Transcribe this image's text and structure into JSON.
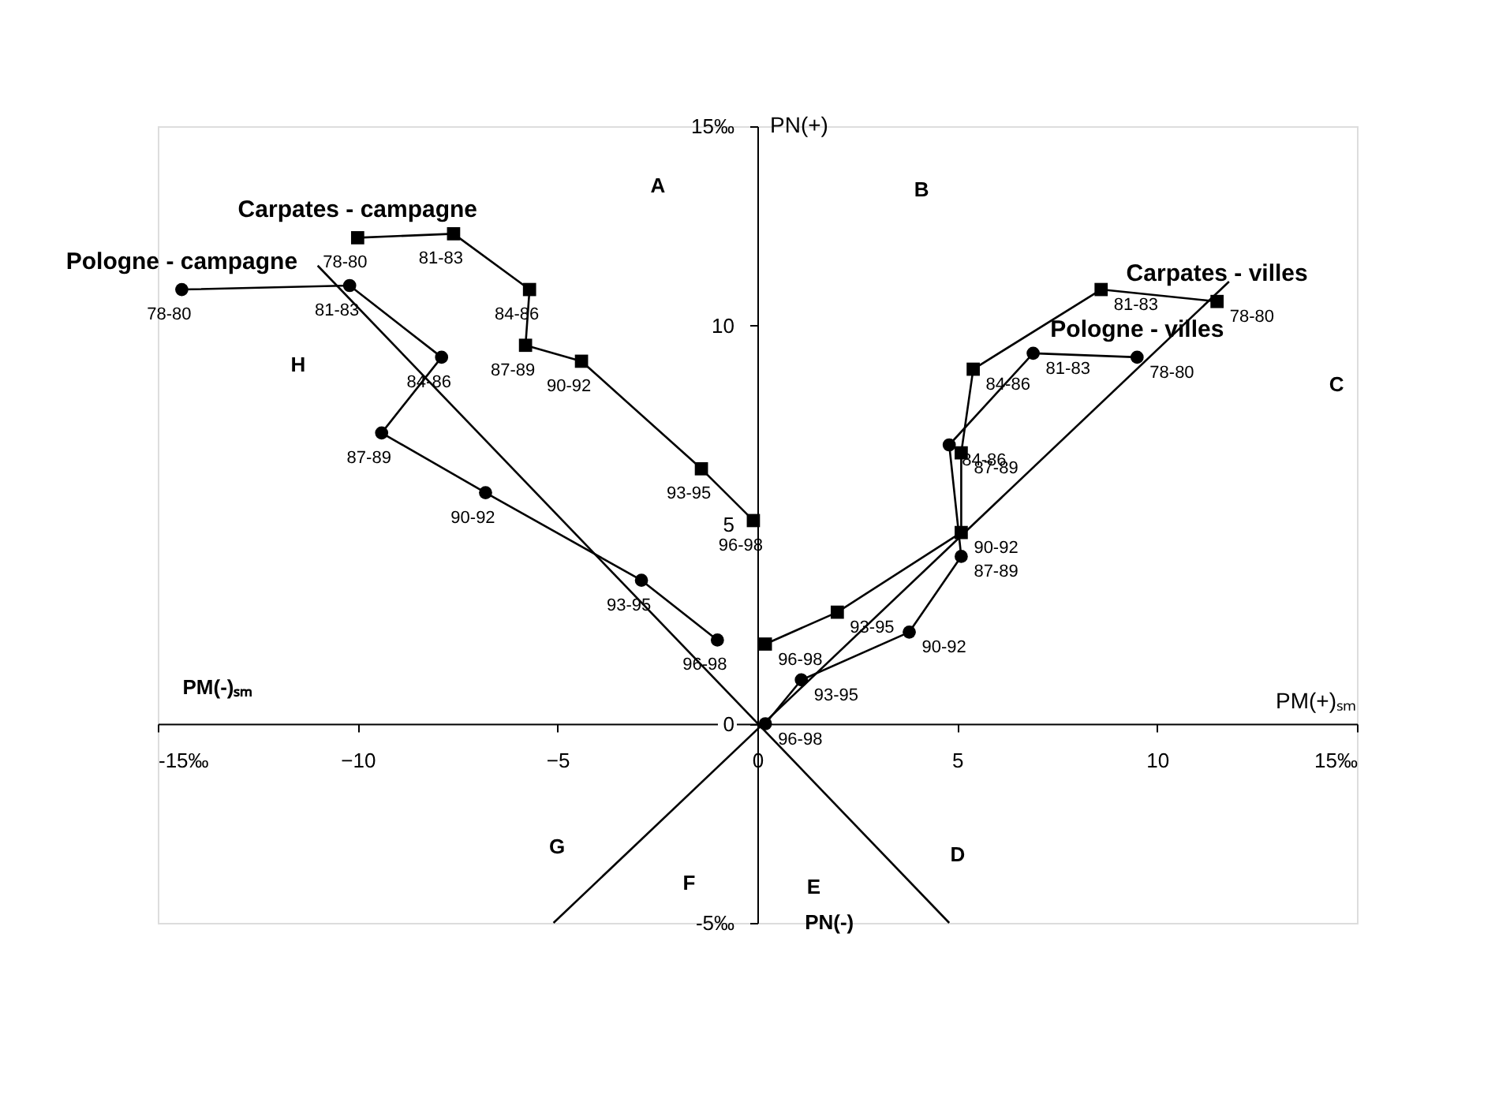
{
  "chart_data": {
    "type": "line",
    "xlabel": "PM(+)ₛₘ",
    "ylabel": "PN(+)",
    "xlim": [
      -15,
      15
    ],
    "ylim": [
      -5,
      15
    ],
    "xticks": [
      {
        "value": -15,
        "label": "-15‰"
      },
      -10,
      -5,
      0,
      5,
      10,
      {
        "value": 15,
        "label": "15‰"
      }
    ],
    "yticks": [
      {
        "value": -5,
        "label": "-5‰"
      },
      0,
      5,
      10,
      {
        "value": 15,
        "label": "15‰"
      }
    ],
    "grid": false,
    "series": [
      {
        "name": "Pologne - campagne",
        "marker": "circle",
        "color": "#000000",
        "x": [
          -14.4,
          -10.2,
          -7.9,
          -9.4,
          -6.8,
          -2.9,
          -1.0
        ],
        "values": [
          10.9,
          11.0,
          9.2,
          7.3,
          5.8,
          3.6,
          2.1
        ]
      },
      {
        "name": "Carpates - campagne",
        "marker": "square",
        "color": "#000000",
        "x": [
          -10.0,
          -7.6,
          -5.7,
          -5.8,
          -4.4,
          -1.4,
          -0.1
        ],
        "values": [
          12.2,
          12.3,
          10.9,
          9.5,
          9.1,
          6.4,
          5.1
        ]
      },
      {
        "name": "Carpates - villes",
        "marker": "square",
        "color": "#000000",
        "x": [
          11.5,
          8.6,
          5.4,
          5.1,
          5.1,
          2.0,
          0.2
        ],
        "values": [
          10.6,
          10.9,
          8.9,
          6.8,
          4.8,
          2.8,
          2.0
        ]
      },
      {
        "name": "Pologne - villes",
        "marker": "circle",
        "color": "#000000",
        "x": [
          9.5,
          6.9,
          4.8,
          5.1,
          3.8,
          1.1,
          0.2
        ],
        "values": [
          9.2,
          9.3,
          7.0,
          4.2,
          2.3,
          1.1,
          0.0
        ]
      },
      {
        "marker": "none",
        "color": "#000000",
        "x": [
          -11.0,
          4.8
        ],
        "values": [
          11.5,
          -5.0
        ]
      },
      {
        "marker": "none",
        "color": "#000000",
        "x": [
          -5.1,
          11.8
        ],
        "values": [
          -5.0,
          11.1
        ]
      }
    ],
    "annotations": [
      {
        "text": "78-80",
        "x": -14.4,
        "y": 10.9
      },
      {
        "text": "81-83",
        "x": -10.2,
        "y": 11.0
      },
      {
        "text": "84-86",
        "x": -7.9,
        "y": 9.2
      },
      {
        "text": "87-89",
        "x": -9.4,
        "y": 7.3
      },
      {
        "text": "90-92",
        "x": -6.8,
        "y": 5.8
      },
      {
        "text": "93-95",
        "x": -2.9,
        "y": 3.6
      },
      {
        "text": "96-98",
        "x": -1.0,
        "y": 2.1
      },
      {
        "text": "78-80",
        "x": -10.0,
        "y": 12.2
      },
      {
        "text": "81-83",
        "x": -7.6,
        "y": 12.3
      },
      {
        "text": "84-86",
        "x": -5.7,
        "y": 10.9
      },
      {
        "text": "87-89",
        "x": -5.8,
        "y": 9.5
      },
      {
        "text": "90-92",
        "x": -4.4,
        "y": 9.1
      },
      {
        "text": "93-95",
        "x": -1.4,
        "y": 6.4
      },
      {
        "text": "96-98",
        "x": -0.1,
        "y": 5.1
      },
      {
        "text": "78-80",
        "x": 11.5,
        "y": 10.6
      },
      {
        "text": "81-83",
        "x": 8.6,
        "y": 10.9
      },
      {
        "text": "84-86",
        "x": 5.4,
        "y": 8.9
      },
      {
        "text": "87-89",
        "x": 5.1,
        "y": 6.8
      },
      {
        "text": "90-92",
        "x": 5.1,
        "y": 4.8
      },
      {
        "text": "93-95",
        "x": 2.0,
        "y": 2.8
      },
      {
        "text": "96-98",
        "x": 0.2,
        "y": 2.0
      },
      {
        "text": "78-80",
        "x": 9.5,
        "y": 9.2
      },
      {
        "text": "81-83",
        "x": 6.9,
        "y": 9.3
      },
      {
        "text": "84-86",
        "x": 4.8,
        "y": 7.0
      },
      {
        "text": "87-89",
        "x": 5.1,
        "y": 4.2
      },
      {
        "text": "90-92",
        "x": 3.8,
        "y": 2.3
      },
      {
        "text": "93-95",
        "x": 1.1,
        "y": 1.1
      },
      {
        "text": "96-98",
        "x": 0.2,
        "y": 0.0
      },
      "A",
      "B",
      "C",
      "D",
      "E",
      "F",
      "G",
      "H",
      "PM(-)ₛₘ",
      "PN(-)"
    ]
  }
}
